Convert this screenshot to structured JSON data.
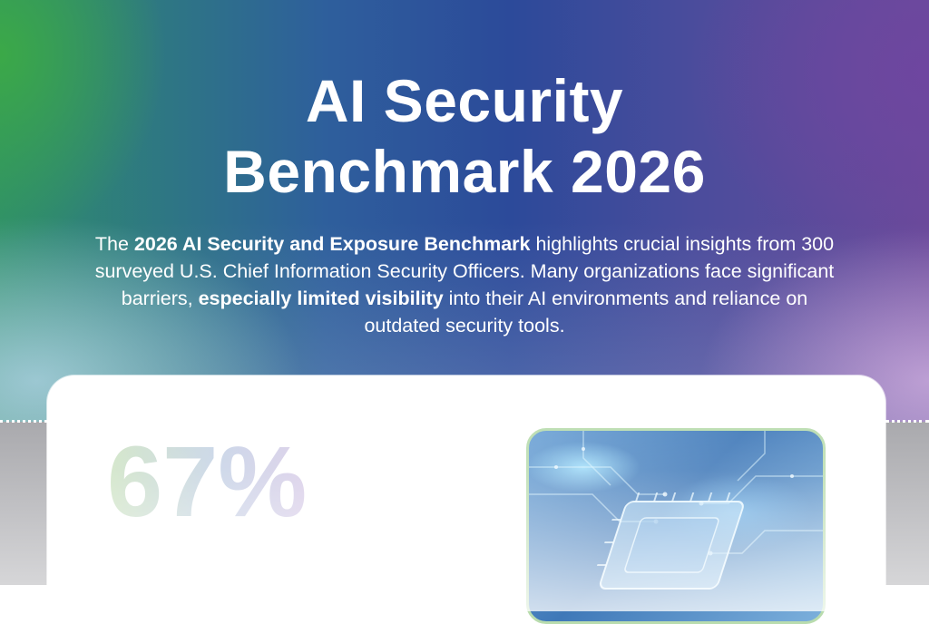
{
  "hero": {
    "title_line1": "AI Security",
    "title_line2": "Benchmark 2026",
    "intro_lead": "The ",
    "intro_bold1": "2026 AI Security and Exposure Benchmark",
    "intro_mid": " highlights crucial insights from 300 surveyed U.S. Chief Information Security Officers. Many organizations face significant barriers, ",
    "intro_bold2": "especially limited visibility",
    "intro_tail": " into their AI environments and reliance on outdated security tools."
  },
  "card": {
    "stat_value": "67%",
    "stat_caption": "",
    "image_icon": "ai-chip-icon"
  },
  "colors": {
    "hero_green": "#3caa46",
    "hero_blue": "#2c4a9a",
    "hero_purple": "#6a4a9a",
    "image_border": "#b9dcae"
  }
}
